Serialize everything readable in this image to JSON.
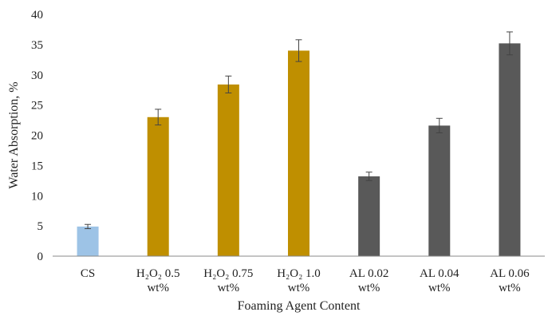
{
  "chart_data": {
    "type": "bar",
    "xlabel": "Foaming Agent Content",
    "ylabel": "Water Absorption, %",
    "ylim": [
      0,
      40
    ],
    "yticks": [
      0,
      5,
      10,
      15,
      20,
      25,
      30,
      35,
      40
    ],
    "grid": false,
    "legend": "none",
    "categories": [
      {
        "line1": "CS",
        "line2": ""
      },
      {
        "line1": "H₂O₂ 0.5",
        "line2": "wt%"
      },
      {
        "line1": "H₂O₂ 0.75",
        "line2": "wt%"
      },
      {
        "line1": "H₂O₂ 1.0",
        "line2": "wt%"
      },
      {
        "line1": "AL 0.02",
        "line2": "wt%"
      },
      {
        "line1": "AL 0.04",
        "line2": "wt%"
      },
      {
        "line1": "AL 0.06",
        "line2": "wt%"
      }
    ],
    "values": [
      4.9,
      23.0,
      28.4,
      34.0,
      13.2,
      21.6,
      35.2
    ],
    "errors": [
      0.35,
      1.3,
      1.4,
      1.8,
      0.7,
      1.2,
      1.9
    ],
    "colors": [
      "#9dc3e6",
      "#bf8f00",
      "#bf8f00",
      "#bf8f00",
      "#595959",
      "#595959",
      "#595959"
    ]
  }
}
